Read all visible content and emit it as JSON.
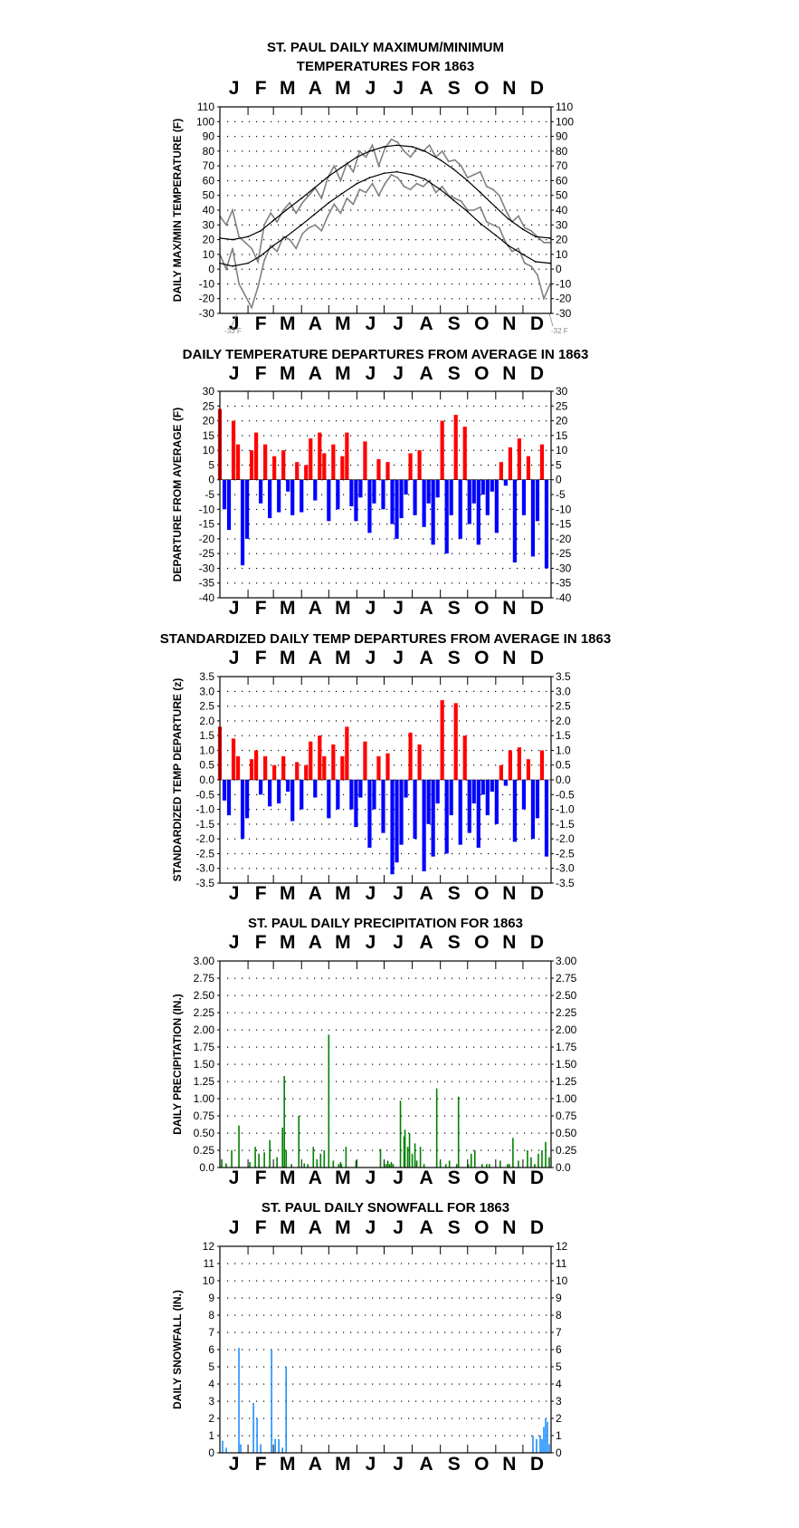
{
  "chart_data": [
    {
      "id": "maxmin",
      "type": "line",
      "title_lines": [
        "ST. PAUL DAILY MAXIMUM/MINIMUM",
        "TEMPERATURES FOR 1863"
      ],
      "ylabel": "DAILY MAX/MIN TEMPERATURE (F)",
      "x_ticks": [
        "J",
        "F",
        "M",
        "A",
        "M",
        "J",
        "J",
        "A",
        "S",
        "O",
        "N",
        "D"
      ],
      "ylim": [
        -30,
        110
      ],
      "ytick_step": 10,
      "ytick_labels": [
        "-30",
        "-20",
        "-10",
        "0",
        "10",
        "20",
        "30",
        "40",
        "50",
        "60",
        "70",
        "80",
        "90",
        "100",
        "110"
      ],
      "grid": "dotted",
      "annotations": [
        {
          "text": "-33 F",
          "day": 20,
          "value": -33
        },
        {
          "text": "-32 F",
          "day": 364,
          "value": -32
        }
      ],
      "colors": {
        "observed": "#808080",
        "normals": "#000000"
      },
      "series": [
        {
          "role": "observed-max",
          "x": [
            1,
            8,
            15,
            22,
            29,
            36,
            43,
            50,
            57,
            64,
            71,
            78,
            85,
            92,
            99,
            106,
            113,
            120,
            127,
            134,
            141,
            148,
            155,
            162,
            169,
            176,
            183,
            190,
            197,
            204,
            211,
            218,
            225,
            232,
            239,
            246,
            253,
            260,
            267,
            274,
            281,
            288,
            295,
            302,
            309,
            316,
            323,
            330,
            337,
            344,
            351,
            358,
            365
          ],
          "values": [
            36,
            30,
            40,
            22,
            18,
            14,
            5,
            30,
            38,
            32,
            40,
            45,
            38,
            45,
            50,
            55,
            48,
            62,
            70,
            60,
            72,
            66,
            80,
            76,
            84,
            70,
            82,
            88,
            86,
            80,
            76,
            82,
            80,
            84,
            76,
            80,
            73,
            74,
            70,
            62,
            64,
            66,
            56,
            54,
            50,
            40,
            32,
            36,
            28,
            26,
            22,
            18,
            18
          ]
        },
        {
          "role": "observed-min",
          "x": [
            1,
            8,
            15,
            22,
            29,
            36,
            43,
            50,
            57,
            64,
            71,
            78,
            85,
            92,
            99,
            106,
            113,
            120,
            127,
            134,
            141,
            148,
            155,
            162,
            169,
            176,
            183,
            190,
            197,
            204,
            211,
            218,
            225,
            232,
            239,
            246,
            253,
            260,
            267,
            274,
            281,
            288,
            295,
            302,
            309,
            316,
            323,
            330,
            337,
            344,
            351,
            358,
            365
          ],
          "values": [
            10,
            0,
            14,
            -10,
            -18,
            -26,
            -12,
            6,
            16,
            12,
            22,
            20,
            14,
            24,
            28,
            30,
            26,
            36,
            44,
            38,
            48,
            44,
            54,
            52,
            58,
            50,
            58,
            64,
            62,
            56,
            54,
            58,
            56,
            60,
            52,
            56,
            50,
            48,
            46,
            40,
            40,
            42,
            32,
            30,
            28,
            18,
            12,
            14,
            4,
            2,
            -4,
            -20,
            -10
          ]
        },
        {
          "role": "normal-max",
          "x": [
            1,
            15,
            32,
            46,
            60,
            74,
            91,
            105,
            121,
            135,
            152,
            166,
            182,
            196,
            213,
            227,
            244,
            258,
            274,
            288,
            305,
            319,
            335,
            349,
            365
          ],
          "values": [
            21,
            20,
            22,
            26,
            33,
            40,
            48,
            55,
            63,
            69,
            76,
            80,
            83,
            84,
            83,
            80,
            74,
            68,
            60,
            52,
            42,
            34,
            27,
            22,
            21
          ]
        },
        {
          "role": "normal-min",
          "x": [
            1,
            15,
            32,
            46,
            60,
            74,
            91,
            105,
            121,
            135,
            152,
            166,
            182,
            196,
            213,
            227,
            244,
            258,
            274,
            288,
            305,
            319,
            335,
            349,
            365
          ],
          "values": [
            4,
            2,
            4,
            9,
            16,
            22,
            30,
            37,
            45,
            51,
            58,
            62,
            65,
            66,
            64,
            61,
            54,
            47,
            39,
            31,
            23,
            16,
            10,
            5,
            4
          ]
        }
      ]
    },
    {
      "id": "dep",
      "type": "bar",
      "title_lines": [
        "DAILY TEMPERATURE DEPARTURES FROM AVERAGE IN 1863"
      ],
      "ylabel": "DEPARTURE FROM AVERAGE (F)",
      "x_ticks": [
        "J",
        "F",
        "M",
        "A",
        "M",
        "J",
        "J",
        "A",
        "S",
        "O",
        "N",
        "D"
      ],
      "ylim": [
        -40,
        30
      ],
      "ytick_step": 5,
      "ytick_labels": [
        "-40",
        "-35",
        "-30",
        "-25",
        "-20",
        "-15",
        "-10",
        "-5",
        "0",
        "5",
        "10",
        "15",
        "20",
        "25",
        "30"
      ],
      "grid": "dotted",
      "colors": {
        "positive": "#ff0000",
        "negative": "#0000ff"
      },
      "x": [
        1,
        6,
        11,
        16,
        21,
        26,
        31,
        36,
        41,
        46,
        51,
        56,
        61,
        66,
        71,
        76,
        81,
        86,
        91,
        96,
        101,
        106,
        111,
        116,
        121,
        126,
        131,
        136,
        141,
        146,
        151,
        156,
        161,
        166,
        171,
        176,
        181,
        186,
        191,
        196,
        201,
        206,
        211,
        216,
        221,
        226,
        231,
        236,
        241,
        246,
        251,
        256,
        261,
        266,
        271,
        276,
        281,
        286,
        291,
        296,
        301,
        306,
        311,
        316,
        321,
        326,
        331,
        336,
        341,
        346,
        351,
        356,
        361
      ],
      "values": [
        24,
        -10,
        -17,
        20,
        12,
        -29,
        -20,
        10,
        16,
        -8,
        12,
        -13,
        8,
        -11,
        10,
        -4,
        -12,
        6,
        -11,
        5,
        14,
        -7,
        16,
        9,
        -14,
        12,
        -10,
        8,
        16,
        -9,
        -14,
        -6,
        13,
        -18,
        -8,
        7,
        -10,
        6,
        -15,
        -20,
        -13,
        -5,
        9,
        -12,
        10,
        -16,
        -8,
        -22,
        -6,
        20,
        -25,
        -12,
        22,
        -20,
        18,
        -15,
        -8,
        -22,
        -5,
        -12,
        -4,
        -18,
        6,
        -2,
        11,
        -28,
        14,
        -12,
        8,
        -26,
        -14,
        12,
        -30
      ]
    },
    {
      "id": "zdep",
      "type": "bar",
      "title_lines": [
        "STANDARDIZED DAILY TEMP DEPARTURES FROM AVERAGE IN 1863"
      ],
      "ylabel": "STANDARDIZED TEMP DEPARTURE (z)",
      "x_ticks": [
        "J",
        "F",
        "M",
        "A",
        "M",
        "J",
        "J",
        "A",
        "S",
        "O",
        "N",
        "D"
      ],
      "ylim": [
        -3.5,
        3.5
      ],
      "ytick_step": 0.5,
      "ytick_labels": [
        "-3.5",
        "-3.0",
        "-2.5",
        "-2.0",
        "-1.5",
        "-1.0",
        "-0.5",
        "0.0",
        "0.5",
        "1.0",
        "1.5",
        "2.0",
        "2.5",
        "3.0",
        "3.5"
      ],
      "grid": "dotted",
      "colors": {
        "positive": "#ff0000",
        "negative": "#0000ff"
      },
      "x": [
        1,
        6,
        11,
        16,
        21,
        26,
        31,
        36,
        41,
        46,
        51,
        56,
        61,
        66,
        71,
        76,
        81,
        86,
        91,
        96,
        101,
        106,
        111,
        116,
        121,
        126,
        131,
        136,
        141,
        146,
        151,
        156,
        161,
        166,
        171,
        176,
        181,
        186,
        191,
        196,
        201,
        206,
        211,
        216,
        221,
        226,
        231,
        236,
        241,
        246,
        251,
        256,
        261,
        266,
        271,
        276,
        281,
        286,
        291,
        296,
        301,
        306,
        311,
        316,
        321,
        326,
        331,
        336,
        341,
        346,
        351,
        356,
        361
      ],
      "values": [
        1.8,
        -0.7,
        -1.2,
        1.4,
        0.8,
        -2.0,
        -1.3,
        0.7,
        1.0,
        -0.5,
        0.8,
        -0.9,
        0.5,
        -0.8,
        0.8,
        -0.4,
        -1.4,
        0.6,
        -1.0,
        0.5,
        1.3,
        -0.6,
        1.5,
        0.8,
        -1.3,
        1.2,
        -1.0,
        0.8,
        1.8,
        -1.0,
        -1.6,
        -0.6,
        1.3,
        -2.3,
        -1.0,
        0.8,
        -1.8,
        0.9,
        -3.2,
        -2.8,
        -2.2,
        -0.6,
        1.6,
        -2.0,
        1.2,
        -3.1,
        -1.5,
        -2.6,
        -0.8,
        2.7,
        -2.5,
        -1.2,
        2.6,
        -2.2,
        1.5,
        -1.8,
        -0.8,
        -2.3,
        -0.5,
        -1.2,
        -0.4,
        -1.5,
        0.5,
        -0.2,
        1.0,
        -2.1,
        1.1,
        -1.0,
        0.7,
        -2.0,
        -1.3,
        1.0,
        -2.6
      ]
    },
    {
      "id": "prcp",
      "type": "bar",
      "title_lines": [
        "ST. PAUL DAILY PRECIPITATION FOR 1863"
      ],
      "ylabel": "DAILY PRECIPITATION (IN.)",
      "x_ticks": [
        "J",
        "F",
        "M",
        "A",
        "M",
        "J",
        "J",
        "A",
        "S",
        "O",
        "N",
        "D"
      ],
      "ylim": [
        0,
        3
      ],
      "ytick_step": 0.25,
      "ytick_labels": [
        "0.0",
        "0.25",
        "0.50",
        "0.75",
        "1.00",
        "1.25",
        "1.50",
        "1.75",
        "2.00",
        "2.25",
        "2.50",
        "2.75",
        "3.00"
      ],
      "grid": "dotted",
      "colors": {
        "bar": "#008000"
      },
      "x": [
        3,
        8,
        14,
        22,
        34,
        40,
        44,
        50,
        56,
        64,
        70,
        72,
        74,
        80,
        88,
        94,
        98,
        104,
        108,
        112,
        116,
        121,
        126,
        132,
        134,
        135,
        140,
        151,
        178,
        184,
        186,
        188,
        190,
        192,
        200,
        204,
        205,
        208,
        210,
        213,
        216,
        218,
        222,
        226,
        240,
        244,
        250,
        254,
        262,
        264,
        275,
        278,
        282,
        290,
        295,
        298,
        310,
        318,
        320,
        324,
        330,
        340,
        344,
        348,
        352,
        356,
        360,
        364
      ],
      "values": [
        0.12,
        0.06,
        0.25,
        0.61,
        0.08,
        0.3,
        0.2,
        0.22,
        0.4,
        0.15,
        0.58,
        1.33,
        0.25,
        0.05,
        0.75,
        0.06,
        0.05,
        0.3,
        0.12,
        0.2,
        0.25,
        1.93,
        0.1,
        0.05,
        0.08,
        0.05,
        0.3,
        0.1,
        0.27,
        0.05,
        0.1,
        0.05,
        0.08,
        0.05,
        0.97,
        0.45,
        0.55,
        0.3,
        0.5,
        0.2,
        0.35,
        0.1,
        0.3,
        0.05,
        1.15,
        0.08,
        0.05,
        0.1,
        0.05,
        1.03,
        0.05,
        0.2,
        0.25,
        0.05,
        0.05,
        0.05,
        0.1,
        0.05,
        0.05,
        0.43,
        0.1,
        0.25,
        0.15,
        0.05,
        0.2,
        0.25,
        0.37,
        0.15
      ]
    },
    {
      "id": "snow",
      "type": "bar",
      "title_lines": [
        "ST. PAUL DAILY SNOWFALL FOR 1863"
      ],
      "ylabel": "DAILY SNOWFALL (IN.)",
      "x_ticks": [
        "J",
        "F",
        "M",
        "A",
        "M",
        "J",
        "J",
        "A",
        "S",
        "O",
        "N",
        "D"
      ],
      "ylim": [
        0,
        12
      ],
      "ytick_step": 1,
      "ytick_labels": [
        "0",
        "1",
        "2",
        "3",
        "4",
        "5",
        "6",
        "7",
        "8",
        "9",
        "10",
        "11",
        "12"
      ],
      "grid": "dotted",
      "colors": {
        "bar": "#1e90ff"
      },
      "x": [
        4,
        8,
        22,
        24,
        38,
        42,
        46,
        58,
        62,
        66,
        70,
        74,
        346,
        350,
        354,
        356,
        358,
        360,
        362,
        364
      ],
      "values": [
        0.7,
        0.3,
        6.1,
        0.5,
        2.9,
        2.0,
        0.5,
        6.0,
        0.8,
        0.8,
        0.3,
        5.0,
        1.0,
        0.8,
        1.0,
        0.8,
        1.5,
        2.0,
        1.8,
        0.5
      ]
    }
  ]
}
